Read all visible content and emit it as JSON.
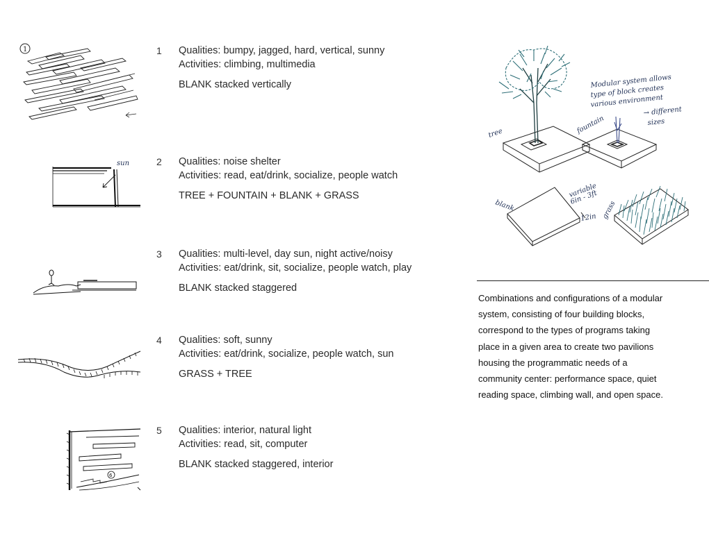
{
  "entries": [
    {
      "number": "1",
      "qualities": "Qualities: bumpy, jagged, hard, vertical, sunny",
      "activities": "Activities: climbing, multimedia",
      "combo": "BLANK stacked vertically"
    },
    {
      "number": "2",
      "qualities": "Qualities: noise shelter",
      "activities": "Activities: read, eat/drink, socialize, people watch",
      "combo": "TREE + FOUNTAIN + BLANK + GRASS"
    },
    {
      "number": "3",
      "qualities": "Qualities: multi-level, day sun, night active/noisy",
      "activities": "Activities: eat/drink, sit, socialize, people watch, play",
      "combo": "BLANK stacked staggered"
    },
    {
      "number": "4",
      "qualities": "Qualities: soft, sunny",
      "activities": "Activities: eat/drink, socialize, people watch, sun",
      "combo": "GRASS + TREE"
    },
    {
      "number": "5",
      "qualities": "Qualities: interior, natural light",
      "activities": "Activities: read, sit, computer",
      "combo": "BLANK stacked staggered, interior"
    }
  ],
  "sketch_labels": {
    "sketch1_circle": "1",
    "sketch2_sun": "sun",
    "sketch5_circle": "6"
  },
  "blocks": {
    "tree": "tree",
    "fountain": "fountain",
    "blank": "blank",
    "grass": "grass",
    "fountain_note": [
      "Modular system allows",
      "type of block creates",
      "various environment",
      "→ different",
      "sizes"
    ],
    "blank_note": [
      "variable",
      "6in - 3ft"
    ],
    "blank_dim": "12in"
  },
  "caption_lines": [
    "Combinations and configurations of a modular",
    "system, consisting of four building blocks,",
    "correspond to the types of programs taking",
    "place in a given area to create two pavilions",
    "housing the programmatic needs of a",
    "community center: performance space, quiet",
    "reading space, climbing wall, and open space."
  ],
  "colors": {
    "ink": "#222222",
    "teal": "#2e6f78",
    "text": "#2a2a2a"
  }
}
